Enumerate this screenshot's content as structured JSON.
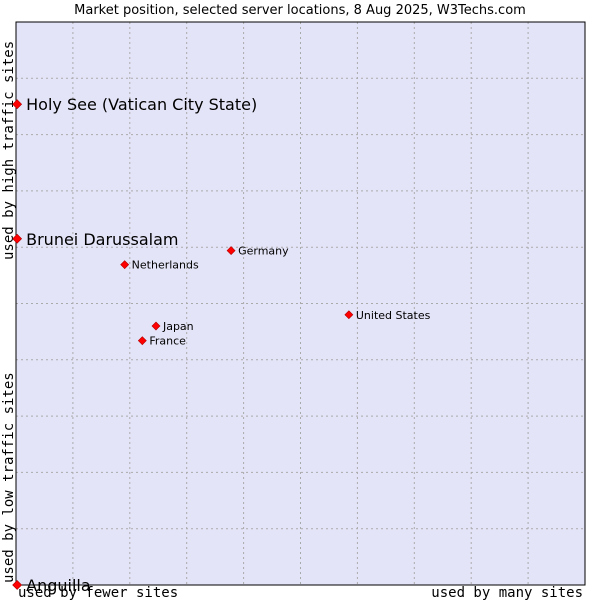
{
  "chart_data": {
    "type": "scatter",
    "title": "Market position, selected server locations, 8 Aug 2025, W3Techs.com",
    "xlabel_left": "used by fewer sites",
    "xlabel_right": "used by many sites",
    "ylabel_bottom": "used by low traffic sites",
    "ylabel_top": "used by high traffic sites",
    "xlim": [
      0,
      100
    ],
    "ylim": [
      0,
      100
    ],
    "grid": true,
    "colors": {
      "plot_bg": "#e4e4f8",
      "grid": "#aaaaaa",
      "point": "#ff0000",
      "border": "#000000"
    },
    "points": [
      {
        "label": "Holy See (Vatican City State)",
        "x": 0.2,
        "y": 85.4,
        "size": "large"
      },
      {
        "label": "Brunei Darussalam",
        "x": 0.2,
        "y": 61.5,
        "size": "large"
      },
      {
        "label": "Anguilla",
        "x": 0.2,
        "y": 0.0,
        "size": "large"
      },
      {
        "label": "Germany",
        "x": 37.8,
        "y": 59.4,
        "size": "small"
      },
      {
        "label": "Netherlands",
        "x": 19.1,
        "y": 56.9,
        "size": "small"
      },
      {
        "label": "United States",
        "x": 58.5,
        "y": 48.0,
        "size": "small"
      },
      {
        "label": "Japan",
        "x": 24.6,
        "y": 46.0,
        "size": "small"
      },
      {
        "label": "France",
        "x": 22.2,
        "y": 43.4,
        "size": "small"
      }
    ]
  }
}
